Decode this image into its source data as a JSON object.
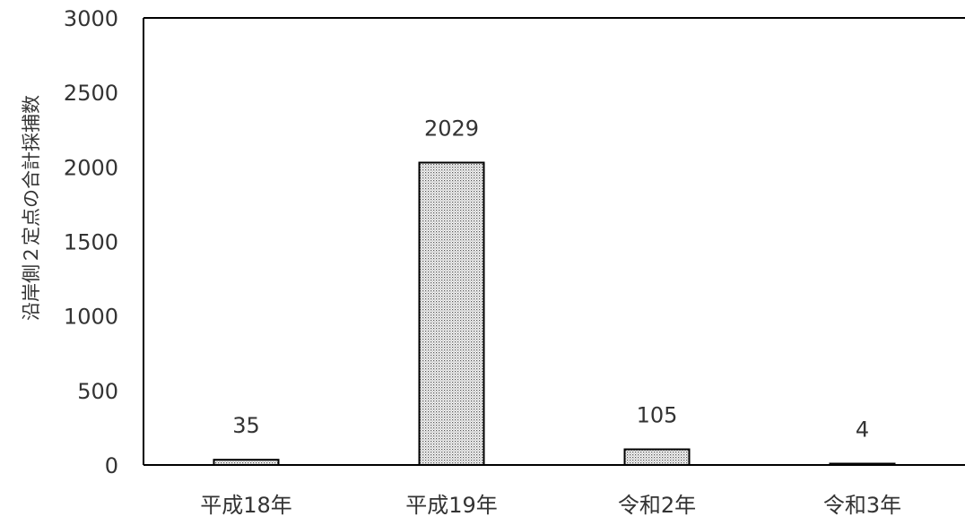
{
  "chart_data": {
    "type": "bar",
    "categories": [
      "平成18年",
      "平成19年",
      "令和2年",
      "令和3年"
    ],
    "values": [
      35,
      2029,
      105,
      4
    ],
    "data_labels": [
      "35",
      "2029",
      "105",
      "4"
    ],
    "title": "",
    "xlabel": "",
    "ylabel": "沿岸側２定点の合計採捕数",
    "ylim": [
      0,
      3000
    ],
    "yticks": [
      0,
      500,
      1000,
      1500,
      2000,
      2500,
      3000
    ],
    "ytick_labels": [
      "0",
      "500",
      "1000",
      "1500",
      "2000",
      "2500",
      "3000"
    ],
    "grid": false,
    "legend": "none",
    "bar_fill_pattern": "stippled",
    "bar_outline_color": "#000000",
    "axis_color": "#000000"
  }
}
